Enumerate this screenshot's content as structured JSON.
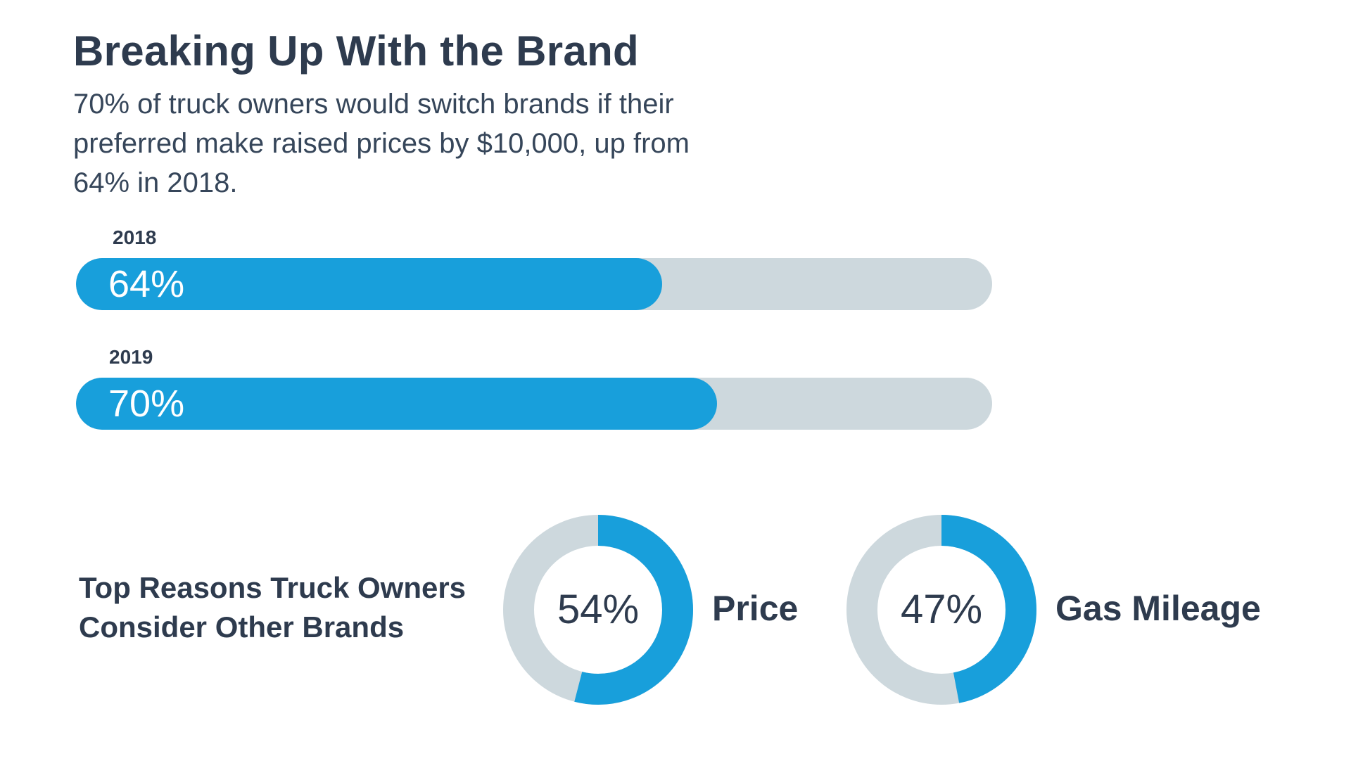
{
  "title": "Breaking Up With the Brand",
  "subtitle": "70% of truck owners would switch brands if their preferred make raised prices by $10,000, up from 64% in 2018.",
  "reasons_heading_line1": "Top Reasons Truck Owners",
  "reasons_heading_line2": "Consider Other Brands",
  "colors": {
    "accent": "#189fdb",
    "track": "#cdd8dd",
    "text": "#2e3b4e"
  },
  "chart_data": [
    {
      "type": "bar",
      "orientation": "horizontal",
      "title": "",
      "categories": [
        "2018",
        "2019"
      ],
      "values": [
        64,
        70
      ],
      "value_labels": [
        "64%",
        "70%"
      ],
      "unit": "%",
      "xlim": [
        0,
        100
      ]
    },
    {
      "type": "pie",
      "style": "donut",
      "title": "Top Reasons Truck Owners Consider Other Brands",
      "slices": [
        {
          "label": "Price",
          "value": 54,
          "value_label": "54%"
        },
        {
          "label": "Gas Mileage",
          "value": 47,
          "value_label": "47%"
        }
      ],
      "unit": "%",
      "max": 100
    }
  ]
}
